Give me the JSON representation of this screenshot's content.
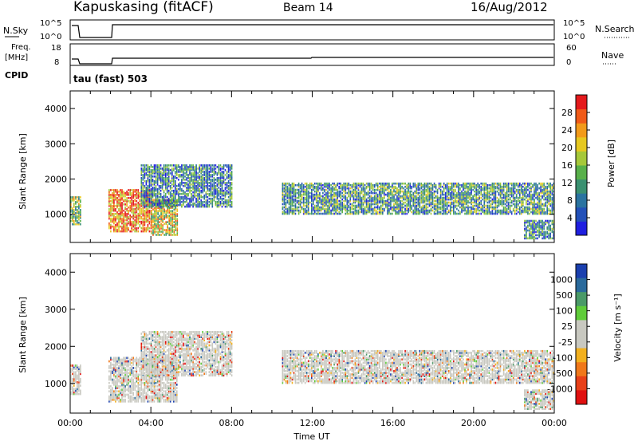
{
  "header": {
    "station": "Kapuskasing (fitACF)",
    "beam": "Beam 14",
    "date": "16/Aug/2012"
  },
  "status_panels": {
    "nsky_label": "N.Sky",
    "nsky_ticks": [
      "10^5",
      "10^0"
    ],
    "nsearch_label": "N.Search",
    "nsearch_ticks": [
      "10^5",
      "10^0"
    ],
    "freq_label": "Freq.",
    "freq_unit": "[MHz]",
    "freq_ticks": [
      "18",
      "8"
    ],
    "nave_label": "Nave",
    "nave_ticks": [
      "60",
      "0"
    ],
    "cpid_label": "CPID",
    "cpid_value": "tau (fast) 503",
    "line_color": "#000000"
  },
  "chart_data": [
    {
      "type": "heatmap",
      "name": "power",
      "ylabel": "Slant Range [km]",
      "ylim": [
        200,
        4500
      ],
      "yticks": [
        "1000",
        "2000",
        "3000",
        "4000"
      ],
      "xlim": [
        0,
        24
      ],
      "colorbar": {
        "label": "Power [dB]",
        "ticks": [
          "4",
          "8",
          "12",
          "16",
          "20",
          "24",
          "28"
        ],
        "range": [
          0,
          32
        ],
        "colors": [
          "#1f1fe0",
          "#2250b8",
          "#2a73a0",
          "#3a9070",
          "#58b04a",
          "#a6c83a",
          "#e6c820",
          "#f29a1a",
          "#f05a18",
          "#e41a1c"
        ]
      },
      "echo_bands": [
        {
          "t0": 0.0,
          "t1": 0.5,
          "r0": 700,
          "r1": 1500,
          "level": 0.5
        },
        {
          "t0": 1.9,
          "t1": 4.0,
          "r0": 500,
          "r1": 1700,
          "level": 0.8
        },
        {
          "t0": 4.0,
          "t1": 5.3,
          "r0": 400,
          "r1": 1400,
          "level": 0.6
        },
        {
          "t0": 3.5,
          "t1": 8.0,
          "r0": 1200,
          "r1": 2400,
          "level": 0.3
        },
        {
          "t0": 10.5,
          "t1": 24.0,
          "r0": 1000,
          "r1": 1900,
          "level": 0.35
        },
        {
          "t0": 22.5,
          "t1": 24.0,
          "r0": 300,
          "r1": 800,
          "level": 0.3
        }
      ]
    },
    {
      "type": "heatmap",
      "name": "velocity",
      "ylabel": "Slant Range [km]",
      "ylim": [
        200,
        4500
      ],
      "yticks": [
        "1000",
        "2000",
        "3000",
        "4000"
      ],
      "xlim": [
        0,
        24
      ],
      "xlabel": "Time UT",
      "xticks": [
        "00:00",
        "04:00",
        "08:00",
        "12:00",
        "16:00",
        "20:00",
        "00:00"
      ],
      "colorbar": {
        "label": "Velocity [m s⁻¹]",
        "ticks": [
          "1000",
          "500",
          "100",
          "25",
          "-25",
          "-100",
          "-500",
          "-1000"
        ],
        "colors": [
          "#1a3fae",
          "#2a6a9c",
          "#4a9a68",
          "#5fcc3a",
          "#c8c8c0",
          "#c8c8c0",
          "#f2b01e",
          "#f0781a",
          "#e84018",
          "#e01010"
        ]
      },
      "echo_bands": [
        {
          "t0": 0.0,
          "t1": 0.5,
          "r0": 700,
          "r1": 1500,
          "level": 0.45
        },
        {
          "t0": 1.9,
          "t1": 5.3,
          "r0": 500,
          "r1": 1700,
          "level": 0.55
        },
        {
          "t0": 3.5,
          "t1": 8.0,
          "r0": 1200,
          "r1": 2400,
          "level": 0.45
        },
        {
          "t0": 10.5,
          "t1": 24.0,
          "r0": 1000,
          "r1": 1900,
          "level": 0.45
        },
        {
          "t0": 22.5,
          "t1": 24.0,
          "r0": 300,
          "r1": 800,
          "level": 0.3
        }
      ]
    }
  ]
}
